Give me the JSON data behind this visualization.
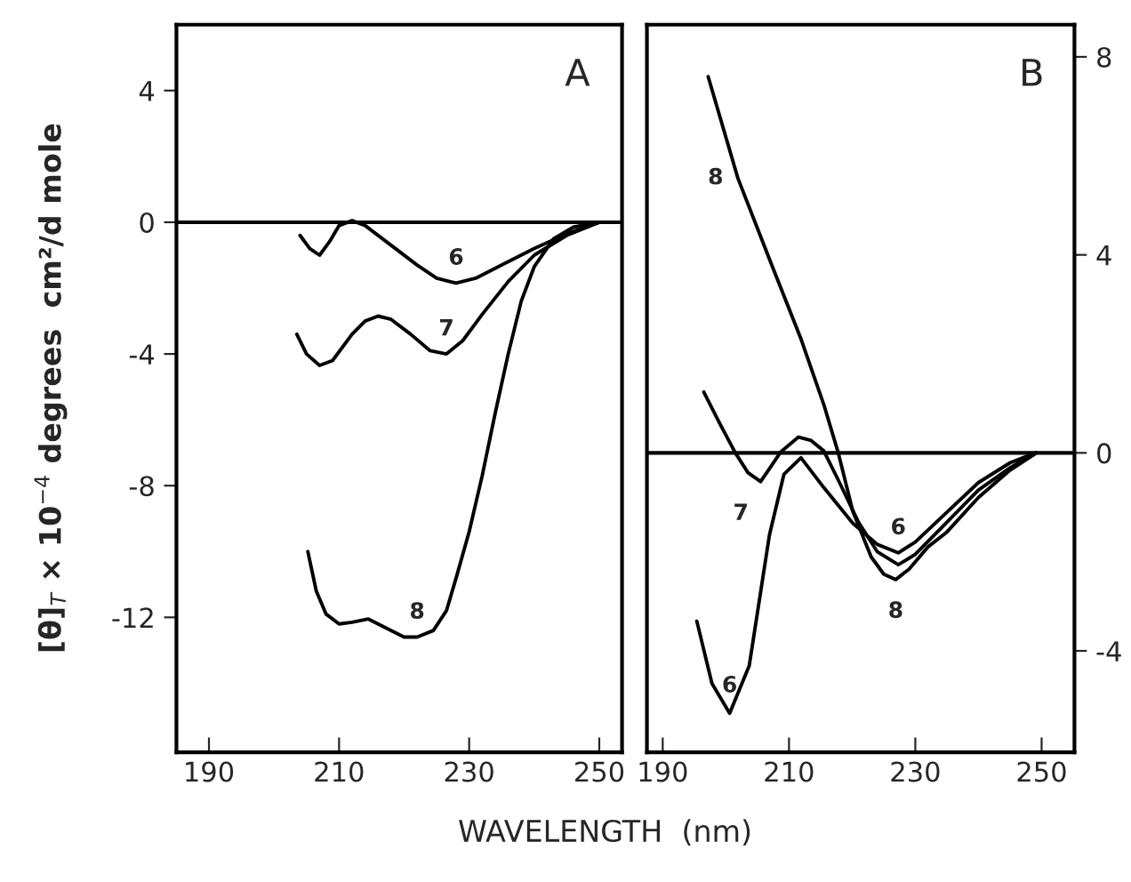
{
  "chart_data": [
    {
      "type": "line",
      "ylabel": "[θ]$_{T}$ × 10$^{−4}$ degrees  cm²/d mole",
      "xlabel": "WAVELENGTH  (nm)",
      "xlim": [
        185,
        253.5
      ],
      "xticks": [
        190,
        210,
        230,
        250
      ],
      "ylim": [
        -16.1,
        6
      ],
      "yticks": [
        4,
        0,
        -4,
        -8,
        -12
      ],
      "grid": false,
      "marker": "none",
      "line_style": "solid",
      "ref_lines": [
        {
          "axis": "y",
          "value": 0,
          "color": "#000000"
        }
      ],
      "annotations": [
        "A",
        {
          "text": "6",
          "x": 228,
          "y": -1.85
        },
        {
          "text": "7",
          "x": 226.5,
          "y": -4.0
        },
        {
          "text": "8",
          "x": 222,
          "y": -12.6
        }
      ],
      "series": [
        {
          "color": "#000000",
          "x": [
            204,
            205.5,
            207,
            208.5,
            210,
            212,
            214,
            218,
            222,
            225,
            228,
            231,
            235,
            240,
            245,
            250
          ],
          "values": [
            -0.4,
            -0.8,
            -1.0,
            -0.6,
            -0.1,
            0.05,
            -0.1,
            -0.7,
            -1.3,
            -1.7,
            -1.85,
            -1.7,
            -1.3,
            -0.8,
            -0.35,
            0
          ]
        },
        {
          "color": "#000000",
          "x": [
            203.5,
            205,
            207,
            209,
            212,
            214,
            216,
            218,
            221,
            224,
            226.5,
            229,
            232,
            236,
            240,
            245,
            250
          ],
          "values": [
            -3.4,
            -4.0,
            -4.35,
            -4.2,
            -3.4,
            -3.0,
            -2.85,
            -2.95,
            -3.4,
            -3.9,
            -4.0,
            -3.6,
            -2.8,
            -1.8,
            -1.0,
            -0.4,
            0
          ]
        },
        {
          "color": "#000000",
          "x": [
            205.2,
            206.5,
            208,
            210,
            212,
            214.5,
            217,
            220,
            222,
            224.5,
            226.5,
            228,
            230,
            232,
            234,
            236,
            238,
            240,
            243,
            246,
            250
          ],
          "values": [
            -10,
            -11.2,
            -11.9,
            -12.2,
            -12.15,
            -12.05,
            -12.3,
            -12.6,
            -12.6,
            -12.4,
            -11.8,
            -10.8,
            -9.4,
            -7.7,
            -5.8,
            -4.0,
            -2.4,
            -1.35,
            -0.5,
            -0.15,
            0
          ]
        }
      ]
    },
    {
      "type": "line",
      "xlim": [
        187.5,
        255.2
      ],
      "xticks": [
        190,
        210,
        230,
        250
      ],
      "ylim": [
        -6.05,
        8.65
      ],
      "yticks": [
        8,
        4,
        0,
        -4
      ],
      "grid": false,
      "marker": "none",
      "line_style": "solid",
      "ref_lines": [
        {
          "axis": "y",
          "value": 0,
          "color": "#000000"
        }
      ],
      "annotations": [
        "B",
        {
          "text": "8",
          "x": 201.9,
          "y": 5.55
        },
        {
          "text": "7",
          "x": 205.5,
          "y": -0.58
        },
        {
          "text": "6",
          "x": 227.3,
          "y": -2.02
        },
        {
          "text": "8",
          "x": 226.9,
          "y": -2.56
        },
        {
          "text": "6",
          "x": 200.6,
          "y": -5.26
        }
      ],
      "series": [
        {
          "color": "#000000",
          "x": [
            195.4,
            197.8,
            200.6,
            203.7,
            206.9,
            209.2,
            211.9,
            215.5,
            220.1,
            224,
            227.3,
            230,
            235,
            240,
            245,
            249
          ],
          "values": [
            -3.4,
            -4.66,
            -5.26,
            -4.3,
            -1.66,
            -0.43,
            -0.1,
            -0.7,
            -1.42,
            -1.85,
            -2.02,
            -1.8,
            -1.2,
            -0.6,
            -0.2,
            0
          ]
        },
        {
          "color": "#000000",
          "x": [
            196.5,
            199,
            201.5,
            203.5,
            205.5,
            207,
            208.7,
            211.5,
            213.5,
            215.5,
            218,
            221,
            224,
            227.3,
            230,
            235,
            240,
            245,
            249
          ],
          "values": [
            1.23,
            0.6,
            0,
            -0.4,
            -0.58,
            -0.3,
            0.02,
            0.32,
            0.25,
            0.04,
            -0.6,
            -1.4,
            -2.0,
            -2.26,
            -2.05,
            -1.4,
            -0.75,
            -0.3,
            0
          ]
        },
        {
          "color": "#000000",
          "x": [
            197.2,
            201.9,
            207.4,
            211.9,
            215.5,
            217.8,
            220.1,
            223,
            225,
            226.9,
            229,
            232,
            235,
            240,
            245,
            249.2
          ],
          "values": [
            7.6,
            5.55,
            3.75,
            2.3,
            0.98,
            0,
            -1.18,
            -2.1,
            -2.45,
            -2.56,
            -2.35,
            -1.9,
            -1.6,
            -0.9,
            -0.35,
            0
          ]
        }
      ]
    }
  ]
}
